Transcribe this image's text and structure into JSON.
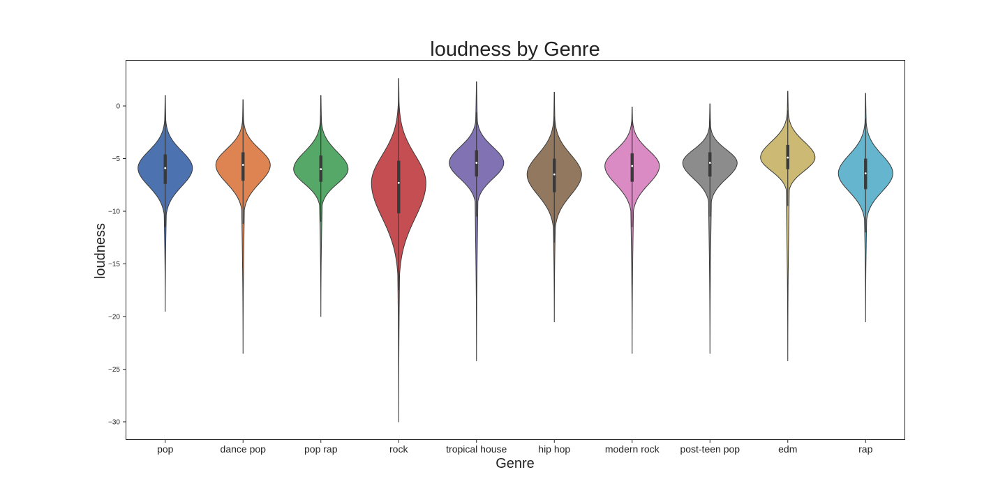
{
  "chart_data": {
    "type": "violin",
    "title": "loudness by Genre",
    "xlabel": "Genre",
    "ylabel": "loudness",
    "ylim": [
      -31.5,
      4.3
    ],
    "yticks": [
      0,
      -5,
      -10,
      -15,
      -20,
      -25,
      -30
    ],
    "categories": [
      "pop",
      "dance pop",
      "pop rap",
      "rock",
      "tropical house",
      "hip hop",
      "modern rock",
      "post-teen pop",
      "edm",
      "rap"
    ],
    "grid": false,
    "series": [
      {
        "category": "pop",
        "color": "#4c72b0",
        "max": 1.0,
        "min": -19.5,
        "q1": -7.4,
        "median": -5.9,
        "q3": -4.6,
        "whisker_low": -11.5,
        "whisker_high": -0.6
      },
      {
        "category": "dance pop",
        "color": "#dd8452",
        "max": 0.6,
        "min": -23.5,
        "q1": -7.1,
        "median": -5.6,
        "q3": -4.4,
        "whisker_low": -11.2,
        "whisker_high": -0.8
      },
      {
        "category": "pop rap",
        "color": "#55a868",
        "max": 1.0,
        "min": -20.0,
        "q1": -7.2,
        "median": -6.0,
        "q3": -4.7,
        "whisker_low": -11.0,
        "whisker_high": -0.9
      },
      {
        "category": "rock",
        "color": "#c44e52",
        "max": 2.6,
        "min": -30.0,
        "q1": -10.2,
        "median": -7.3,
        "q3": -5.2,
        "whisker_low": -17.5,
        "whisker_high": 0.8
      },
      {
        "category": "tropical house",
        "color": "#8172b3",
        "max": 2.3,
        "min": -24.2,
        "q1": -6.7,
        "median": -5.4,
        "q3": -4.2,
        "whisker_low": -10.5,
        "whisker_high": -0.6
      },
      {
        "category": "hip hop",
        "color": "#937860",
        "max": 1.3,
        "min": -20.5,
        "q1": -8.2,
        "median": -6.5,
        "q3": -5.0,
        "whisker_low": -13.0,
        "whisker_high": -1.0
      },
      {
        "category": "modern rock",
        "color": "#da8bc3",
        "max": -0.1,
        "min": -23.5,
        "q1": -7.2,
        "median": -5.7,
        "q3": -4.5,
        "whisker_low": -11.5,
        "whisker_high": -1.5
      },
      {
        "category": "post-teen pop",
        "color": "#8c8c8c",
        "max": 0.2,
        "min": -23.5,
        "q1": -6.7,
        "median": -5.4,
        "q3": -4.4,
        "whisker_low": -10.5,
        "whisker_high": -1.2
      },
      {
        "category": "edm",
        "color": "#ccb974",
        "max": 1.4,
        "min": -24.2,
        "q1": -6.0,
        "median": -4.9,
        "q3": -3.7,
        "whisker_low": -9.5,
        "whisker_high": -0.4
      },
      {
        "category": "rap",
        "color": "#64b5cd",
        "max": 1.2,
        "min": -20.5,
        "q1": -7.9,
        "median": -6.4,
        "q3": -5.0,
        "whisker_low": -12.0,
        "whisker_high": -1.2
      }
    ]
  }
}
